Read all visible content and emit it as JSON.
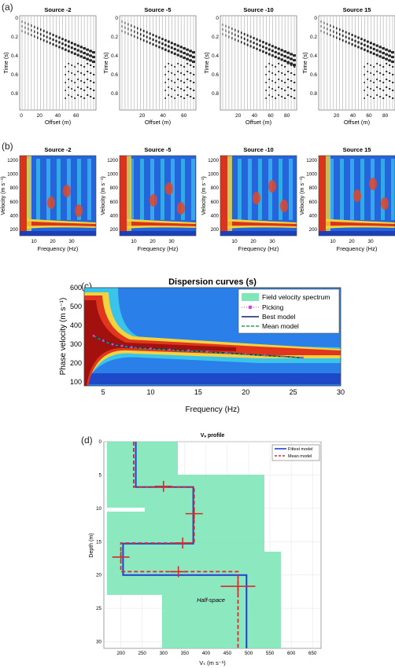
{
  "figure": {
    "panels": {
      "a": "(a)",
      "b": "(b)",
      "c": "(c)",
      "d": "(d)"
    }
  },
  "panel_a": {
    "ylabel": "Time (s)",
    "xlabel": "Offset (m)",
    "yticks": [
      "0",
      "0.2",
      "0.4",
      "0.6",
      "0.8"
    ],
    "plots": [
      {
        "title": "Source -2",
        "xticks": [
          "0",
          "20",
          "40",
          "60"
        ]
      },
      {
        "title": "Source -5",
        "xticks": [
          "20",
          "40",
          "60"
        ]
      },
      {
        "title": "Source -10",
        "xticks": [
          "20",
          "40",
          "60",
          "80"
        ]
      },
      {
        "title": "Source 15",
        "xticks": [
          "20",
          "40",
          "60",
          "80"
        ]
      }
    ]
  },
  "panel_b": {
    "ylabel": "Velocity (m s⁻¹)",
    "xlabel": "Frequency (Hz)",
    "yticks": [
      "200",
      "400",
      "600",
      "800",
      "1000",
      "1200"
    ],
    "plots": [
      {
        "title": "Source -2",
        "xticks": [
          "10",
          "20",
          "30"
        ]
      },
      {
        "title": "Source -5",
        "xticks": [
          "10",
          "20",
          "30"
        ]
      },
      {
        "title": "Source -10",
        "xticks": [
          "10",
          "20",
          "30"
        ]
      },
      {
        "title": "Source 15",
        "xticks": [
          "10",
          "20",
          "30"
        ]
      }
    ]
  },
  "panel_c": {
    "title": "Dispersion curves (s)",
    "xlabel": "Frequency (Hz)",
    "ylabel": "Phase velocity (m s⁻¹)",
    "xticks": [
      "5",
      "10",
      "15",
      "20",
      "25",
      "30"
    ],
    "yticks": [
      "100",
      "200",
      "300",
      "400",
      "500",
      "600"
    ],
    "legend": [
      "Field velocity spectrum",
      "Picking",
      "Best model",
      "Mean model"
    ]
  },
  "panel_d": {
    "title": "Vₛ profile",
    "xlabel": "Vₛ (m s⁻¹)",
    "ylabel": "Depth (m)",
    "xticks": [
      "200",
      "250",
      "300",
      "350",
      "400",
      "450",
      "500",
      "550",
      "600",
      "650"
    ],
    "yticks": [
      "0",
      "5",
      "10",
      "15",
      "20",
      "25",
      "30"
    ],
    "legend": [
      "Fittest model",
      "Mean model"
    ],
    "annotation": "Half-space"
  },
  "colors": {
    "best": "#1f3fd6",
    "mean": "#d62a2a",
    "spectrum": "#7fe6b8",
    "picking": "#e040e0"
  },
  "chart_data": [
    {
      "type": "line",
      "title": "Dispersion curves (s)",
      "xlabel": "Frequency (Hz)",
      "ylabel": "Phase velocity (m s⁻¹)",
      "xlim": [
        3,
        30
      ],
      "ylim": [
        80,
        600
      ],
      "series": [
        {
          "name": "Picking",
          "x": [
            4,
            5,
            6,
            7,
            8,
            10,
            12,
            14,
            16,
            18,
            20,
            22,
            24,
            26
          ],
          "y": [
            345,
            320,
            300,
            292,
            285,
            278,
            272,
            268,
            262,
            255,
            248,
            242,
            236,
            230
          ]
        },
        {
          "name": "Best model",
          "x": [
            4,
            5,
            6,
            7,
            8,
            10,
            12,
            14,
            16,
            18,
            20,
            22,
            24,
            26
          ],
          "y": [
            347,
            318,
            300,
            291,
            285,
            277,
            271,
            266,
            260,
            254,
            247,
            241,
            235,
            229
          ]
        },
        {
          "name": "Mean model",
          "x": [
            4,
            5,
            6,
            7,
            8,
            10,
            12,
            14,
            16,
            18,
            20,
            22,
            24,
            26
          ],
          "y": [
            345,
            317,
            299,
            290,
            284,
            276,
            270,
            265,
            259,
            253,
            246,
            240,
            234,
            228
          ]
        }
      ],
      "legend_position": "top-right"
    },
    {
      "type": "line",
      "title": "Vₛ profile",
      "xlabel": "Vₛ (m s⁻¹)",
      "ylabel": "Depth (m)",
      "xlim": [
        160,
        670
      ],
      "ylim": [
        0,
        31
      ],
      "series": [
        {
          "name": "Fittest model",
          "steps": [
            [
              235,
              0
            ],
            [
              235,
              6.8
            ],
            [
              370,
              6.8
            ],
            [
              370,
              15.3
            ],
            [
              205,
              15.3
            ],
            [
              205,
              20
            ],
            [
              495,
              20
            ],
            [
              495,
              31
            ]
          ]
        },
        {
          "name": "Mean model",
          "steps": [
            [
              230,
              0
            ],
            [
              230,
              6.8
            ],
            [
              372,
              6.8
            ],
            [
              372,
              15.2
            ],
            [
              200,
              15.2
            ],
            [
              200,
              19.5
            ],
            [
              475,
              19.5
            ],
            [
              475,
              31
            ]
          ]
        }
      ],
      "error_bars": [
        {
          "v": 300,
          "d": 6.7
        },
        {
          "v": 372,
          "d": 10.8
        },
        {
          "v": 345,
          "d": 15.2
        },
        {
          "v": 200,
          "d": 17.3
        },
        {
          "v": 335,
          "d": 19.5
        },
        {
          "v": 475,
          "d": 21.7
        }
      ],
      "legend_position": "top-right"
    }
  ]
}
